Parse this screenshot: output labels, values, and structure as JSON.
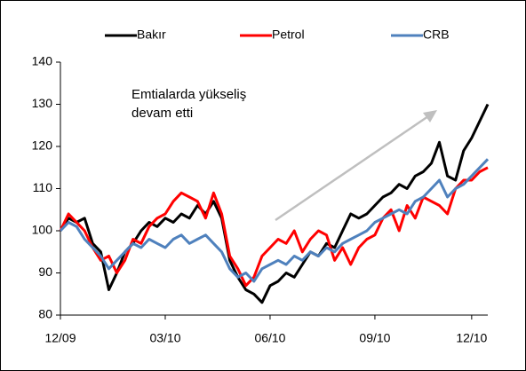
{
  "chart_data": {
    "type": "line",
    "annotations": [
      "Emtialarda yükseliş",
      "devam etti"
    ],
    "categories": [
      "12/09",
      null,
      null,
      null,
      null,
      null,
      null,
      null,
      null,
      null,
      null,
      null,
      null,
      "03/10",
      null,
      null,
      null,
      null,
      null,
      null,
      null,
      null,
      null,
      null,
      null,
      null,
      "06/10",
      null,
      null,
      null,
      null,
      null,
      null,
      null,
      null,
      null,
      null,
      null,
      null,
      "09/10",
      null,
      null,
      null,
      null,
      null,
      null,
      null,
      null,
      null,
      null,
      null,
      "12/10",
      null,
      null
    ],
    "series": [
      {
        "name": "Bakır",
        "color": "#000000",
        "values": [
          100,
          103,
          102,
          103,
          97,
          95,
          86,
          90,
          95,
          97,
          100,
          102,
          101,
          103,
          102,
          104,
          103,
          106,
          104,
          107,
          103,
          93,
          89,
          86,
          85,
          83,
          87,
          88,
          90,
          89,
          92,
          95,
          94,
          97,
          96,
          100,
          104,
          103,
          104,
          106,
          108,
          109,
          111,
          110,
          113,
          114,
          116,
          121,
          113,
          112,
          119,
          122,
          126,
          130
        ]
      },
      {
        "name": "Petrol",
        "color": "#ff0000",
        "values": [
          100,
          104,
          102,
          100,
          96,
          93,
          94,
          90,
          93,
          98,
          97,
          101,
          103,
          104,
          107,
          109,
          108,
          107,
          103,
          109,
          104,
          94,
          91,
          87,
          89,
          94,
          96,
          98,
          97,
          100,
          95,
          98,
          100,
          99,
          93,
          96,
          92,
          96,
          98,
          99,
          103,
          105,
          100,
          106,
          103,
          108,
          107,
          106,
          104,
          110,
          112,
          112,
          114,
          115
        ]
      },
      {
        "name": "CRB",
        "color": "#4f81bd",
        "values": [
          100,
          102,
          101,
          98,
          96,
          94,
          91,
          93,
          95,
          97,
          96,
          98,
          97,
          96,
          98,
          99,
          97,
          98,
          99,
          97,
          95,
          91,
          89,
          90,
          88,
          91,
          92,
          93,
          92,
          94,
          93,
          95,
          94,
          96,
          95,
          97,
          98,
          99,
          100,
          102,
          103,
          104,
          105,
          104,
          107,
          108,
          110,
          112,
          108,
          110,
          111,
          113,
          115,
          117
        ]
      }
    ],
    "ylim": [
      80,
      140
    ],
    "yticks": [
      80,
      90,
      100,
      110,
      120,
      130,
      140
    ],
    "grid": false,
    "legend": "top"
  }
}
